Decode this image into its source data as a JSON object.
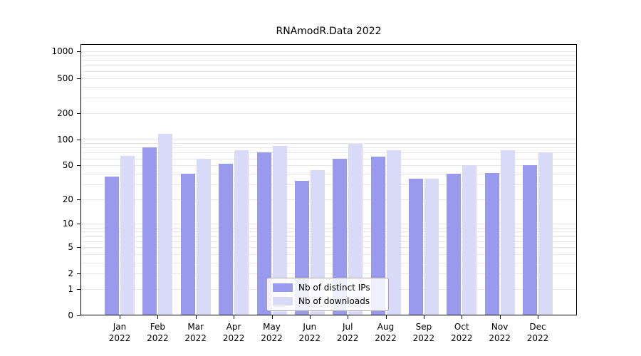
{
  "title": "RNAmodR.Data 2022",
  "chart_data": {
    "type": "bar",
    "title": "RNAmodR.Data 2022",
    "scale": "log10(x+1)",
    "grid": true,
    "legend_position": "bottom-center-inside",
    "xlabel": "",
    "ylabel": "",
    "year": "2022",
    "categories": [
      "Jan",
      "Feb",
      "Mar",
      "Apr",
      "May",
      "Jun",
      "Jul",
      "Aug",
      "Sep",
      "Oct",
      "Nov",
      "Dec"
    ],
    "y_ticks": [
      0,
      1,
      2,
      5,
      10,
      20,
      50,
      100,
      200,
      500,
      1000
    ],
    "ylim": [
      0,
      1200
    ],
    "series": [
      {
        "name": "Nb of distinct IPs",
        "color": "#9999ee",
        "values": [
          37,
          80,
          40,
          52,
          70,
          33,
          60,
          63,
          35,
          40,
          41,
          50
        ]
      },
      {
        "name": "Nb of downloads",
        "color": "#d9d9f8",
        "values": [
          64,
          115,
          60,
          75,
          83,
          44,
          88,
          75,
          35,
          50,
          75,
          70
        ]
      }
    ]
  }
}
